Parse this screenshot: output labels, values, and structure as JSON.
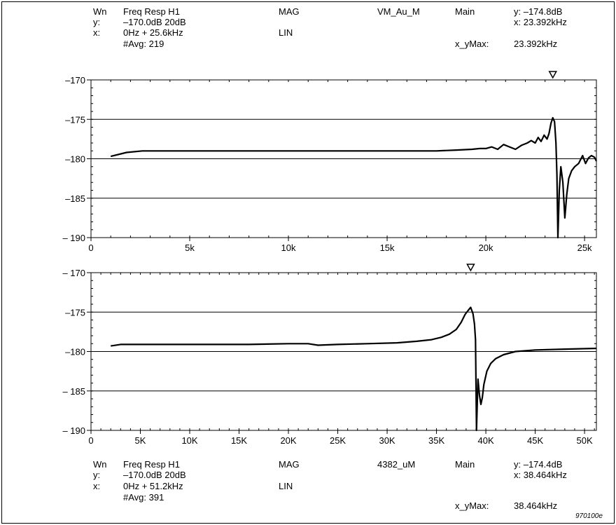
{
  "top_header": {
    "window_label": "Wn",
    "function": "Freq Resp H1",
    "format": "MAG",
    "channel": "VM_Au_M",
    "section": "Main",
    "marker_y": "y: –174.8dB",
    "y_label": "y:",
    "y_value": "–170.0dB 20dB",
    "marker_x": "x: 23.392kHz",
    "x_label": "x:",
    "x_value": "0Hz + 25.6kHz",
    "x_scale": "LIN",
    "avg": "#Avg: 219",
    "xymax_label": "x_yMax:",
    "xymax_value": "23.392kHz"
  },
  "bottom_header": {
    "window_label": "Wn",
    "function": "Freq Resp H1",
    "format": "MAG",
    "channel": "4382_uM",
    "section": "Main",
    "marker_y": "y: –174.4dB",
    "y_label": "y:",
    "y_value": "–170.0dB 20dB",
    "marker_x": "x: 38.464kHz",
    "x_label": "x:",
    "x_value": "0Hz + 51.2kHz",
    "x_scale": "LIN",
    "avg": "#Avg: 391",
    "xymax_label": "x_yMax:",
    "xymax_value": "38.464kHz"
  },
  "figure_id": "970100e",
  "chart_data": [
    {
      "type": "line",
      "xlim": [
        0,
        25.6
      ],
      "ylim": [
        -190,
        -170
      ],
      "x_ticks": [
        0,
        5,
        10,
        15,
        20,
        25
      ],
      "x_tick_labels": [
        "0",
        "5k",
        "10k",
        "15k",
        "20k",
        "25k"
      ],
      "y_ticks": [
        -170,
        -175,
        -180,
        -185,
        -190
      ],
      "y_tick_labels": [
        "–170",
        "–175",
        "–180",
        "–185",
        "– 190"
      ],
      "grid": "horizontal",
      "marker": {
        "x": 23.392,
        "y": -174.8
      },
      "x": [
        1.0,
        1.8,
        2.6,
        4.0,
        6.0,
        8.0,
        10.0,
        12.0,
        14.0,
        16.0,
        17.5,
        18.5,
        19.3,
        19.7,
        20.0,
        20.3,
        20.6,
        20.9,
        21.2,
        21.5,
        21.8,
        22.1,
        22.3,
        22.5,
        22.65,
        22.8,
        22.95,
        23.1,
        23.2,
        23.3,
        23.392,
        23.48,
        23.55,
        23.6,
        23.65,
        23.72,
        23.8,
        23.9,
        24.0,
        24.1,
        24.2,
        24.35,
        24.5,
        24.7,
        24.9,
        25.05,
        25.2,
        25.35,
        25.5,
        25.6
      ],
      "y": [
        -179.7,
        -179.2,
        -179.0,
        -179.0,
        -179.0,
        -179.0,
        -179.0,
        -179.0,
        -179.0,
        -179.0,
        -179.0,
        -178.9,
        -178.8,
        -178.7,
        -178.7,
        -178.5,
        -178.8,
        -178.2,
        -178.5,
        -178.8,
        -178.3,
        -178.0,
        -177.7,
        -178.0,
        -177.3,
        -177.8,
        -177.0,
        -177.5,
        -176.8,
        -175.5,
        -174.8,
        -175.3,
        -178.0,
        -182.0,
        -190.0,
        -184.0,
        -181.0,
        -183.0,
        -187.5,
        -184.5,
        -182.5,
        -181.5,
        -181.0,
        -180.6,
        -179.6,
        -180.6,
        -179.9,
        -179.6,
        -179.8,
        -180.3
      ]
    },
    {
      "type": "line",
      "xlim": [
        0,
        51.2
      ],
      "ylim": [
        -190,
        -170
      ],
      "x_ticks": [
        0,
        5,
        10,
        15,
        20,
        25,
        30,
        35,
        40,
        45,
        50
      ],
      "x_tick_labels": [
        "0",
        "5K",
        "10K",
        "15K",
        "20K",
        "25K",
        "30K",
        "35K",
        "40K",
        "45K",
        "50K"
      ],
      "y_ticks": [
        -170,
        -175,
        -180,
        -185,
        -190
      ],
      "y_tick_labels": [
        "– 170",
        "–175",
        "–180",
        "– 185",
        "– 190"
      ],
      "grid": "horizontal",
      "marker": {
        "x": 38.464,
        "y": -174.4
      },
      "x": [
        2.0,
        3.0,
        4.0,
        8.0,
        12.0,
        16.0,
        20.0,
        22.0,
        23.0,
        25.0,
        28.0,
        31.0,
        33.0,
        34.5,
        35.5,
        36.3,
        37.0,
        37.5,
        37.9,
        38.2,
        38.464,
        38.7,
        38.85,
        38.95,
        39.05,
        39.2,
        39.35,
        39.5,
        39.65,
        39.8,
        40.1,
        40.5,
        41.0,
        41.8,
        43.0,
        45.0,
        48.0,
        51.2
      ],
      "y": [
        -179.3,
        -179.1,
        -179.1,
        -179.1,
        -179.1,
        -179.1,
        -179.0,
        -179.0,
        -179.2,
        -179.1,
        -179.0,
        -178.9,
        -178.7,
        -178.5,
        -178.2,
        -177.8,
        -177.2,
        -176.3,
        -175.3,
        -174.8,
        -174.4,
        -175.2,
        -176.5,
        -178.5,
        -190.0,
        -183.5,
        -185.5,
        -186.7,
        -185.8,
        -184.2,
        -182.5,
        -181.5,
        -180.9,
        -180.4,
        -180.0,
        -179.8,
        -179.7,
        -179.6
      ]
    }
  ]
}
